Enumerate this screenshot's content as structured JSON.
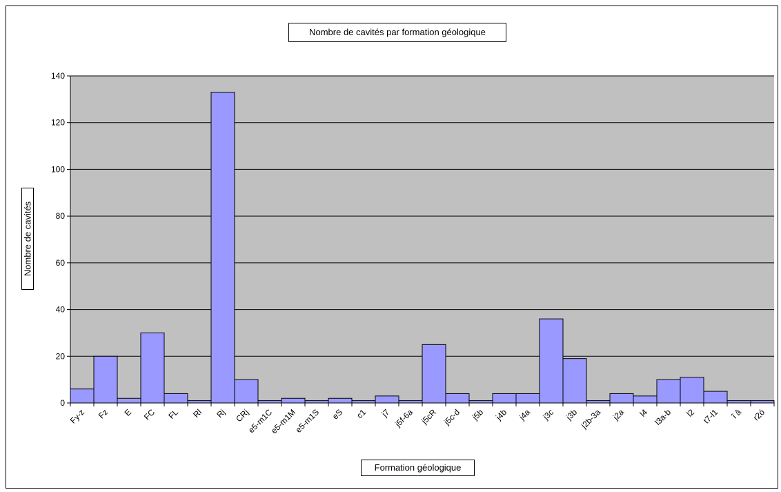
{
  "chart_data": {
    "type": "bar",
    "title": "Nombre de cavités par formation géologique",
    "xlabel": "Formation géologique",
    "ylabel": "Nombre de cavités",
    "ylim": [
      0,
      140
    ],
    "yticks": [
      0,
      20,
      40,
      60,
      80,
      100,
      120,
      140
    ],
    "grid": true,
    "legend": "none",
    "plot_background": "#c0c0c0",
    "bar_color": "#9999ff",
    "categories": [
      "Fy-z",
      "Fz",
      "E",
      "FC",
      "FL",
      "Rl",
      "Rj",
      "CRj",
      "e5-m1C",
      "e5-m1M",
      "e5-m1S",
      "eS",
      "c1",
      "j7",
      "j5f-6a",
      "j5cR",
      "j5c-d",
      "j5b",
      "j4b",
      "j4a",
      "j3c",
      "j3b",
      "j2b-3a",
      "j2a",
      "l4",
      "l3a-b",
      "l2",
      "t7-l1",
      "î â",
      "r2ó"
    ],
    "values": [
      6,
      20,
      2,
      30,
      4,
      1,
      133,
      10,
      1,
      2,
      1,
      2,
      1,
      3,
      1,
      25,
      4,
      1,
      4,
      4,
      36,
      19,
      1,
      4,
      3,
      10,
      11,
      5,
      1,
      1
    ]
  }
}
